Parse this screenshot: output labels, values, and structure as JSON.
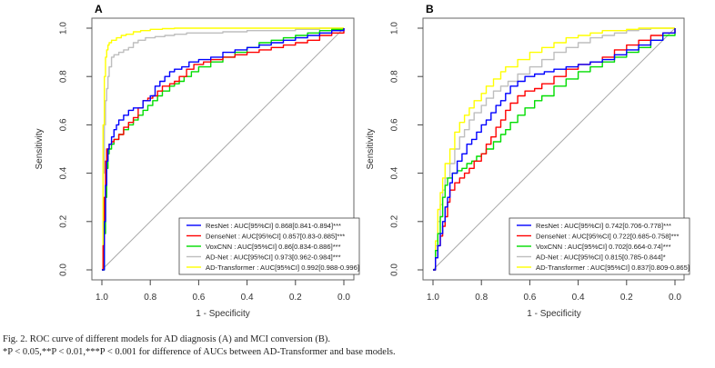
{
  "chart_data": [
    {
      "type": "line",
      "panel_label": "A",
      "title": "",
      "xlabel": "1 - Specificity",
      "ylabel": "Sensitivity",
      "xlim": [
        1.0,
        0.0
      ],
      "ylim": [
        0.0,
        1.0
      ],
      "x_reversed": true,
      "xticks": [
        "1.0",
        "0.8",
        "0.6",
        "0.4",
        "0.2",
        "0.0"
      ],
      "yticks": [
        "0.0",
        "0.2",
        "0.4",
        "0.6",
        "0.8",
        "1.0"
      ],
      "grid": false,
      "diagonal_reference": true,
      "legend_position": "bottom-right",
      "x_axis_values_are": "specificity",
      "series": [
        {
          "name": "ResNet",
          "label": "ResNet : AUC[95%CI]  0.868[0.841-0.894]***",
          "color": "#0000ff",
          "x": [
            1.0,
            0.99,
            0.985,
            0.98,
            0.975,
            0.97,
            0.96,
            0.95,
            0.94,
            0.93,
            0.91,
            0.89,
            0.87,
            0.85,
            0.83,
            0.8,
            0.78,
            0.76,
            0.74,
            0.72,
            0.7,
            0.67,
            0.64,
            0.6,
            0.55,
            0.5,
            0.45,
            0.4,
            0.35,
            0.3,
            0.25,
            0.2,
            0.15,
            0.1,
            0.05,
            0.0
          ],
          "y": [
            0.0,
            0.2,
            0.35,
            0.45,
            0.5,
            0.52,
            0.55,
            0.58,
            0.6,
            0.62,
            0.64,
            0.66,
            0.67,
            0.67,
            0.7,
            0.72,
            0.76,
            0.78,
            0.8,
            0.82,
            0.83,
            0.84,
            0.86,
            0.87,
            0.88,
            0.9,
            0.91,
            0.92,
            0.93,
            0.94,
            0.95,
            0.96,
            0.97,
            0.98,
            0.99,
            1.0
          ]
        },
        {
          "name": "DenseNet",
          "label": "DenseNet : AUC[95%CI]  0.857[0.83-0.885]***",
          "color": "#ff0000",
          "x": [
            1.0,
            0.995,
            0.99,
            0.985,
            0.98,
            0.97,
            0.96,
            0.95,
            0.93,
            0.91,
            0.89,
            0.87,
            0.85,
            0.83,
            0.81,
            0.79,
            0.77,
            0.75,
            0.72,
            0.7,
            0.68,
            0.65,
            0.62,
            0.58,
            0.55,
            0.5,
            0.45,
            0.4,
            0.35,
            0.3,
            0.25,
            0.2,
            0.15,
            0.1,
            0.05,
            0.0
          ],
          "y": [
            0.0,
            0.1,
            0.3,
            0.45,
            0.5,
            0.52,
            0.53,
            0.54,
            0.56,
            0.59,
            0.61,
            0.63,
            0.67,
            0.7,
            0.71,
            0.72,
            0.74,
            0.76,
            0.77,
            0.78,
            0.8,
            0.83,
            0.85,
            0.86,
            0.87,
            0.88,
            0.89,
            0.9,
            0.91,
            0.92,
            0.93,
            0.94,
            0.95,
            0.97,
            0.98,
            1.0
          ]
        },
        {
          "name": "VoxCNN",
          "label": "VoxCNN : AUC[95%CI]  0.86[0.834-0.886]***",
          "color": "#00dd00",
          "x": [
            1.0,
            0.99,
            0.985,
            0.98,
            0.975,
            0.97,
            0.96,
            0.95,
            0.93,
            0.91,
            0.89,
            0.87,
            0.85,
            0.83,
            0.81,
            0.79,
            0.77,
            0.75,
            0.72,
            0.7,
            0.68,
            0.66,
            0.63,
            0.6,
            0.55,
            0.5,
            0.45,
            0.4,
            0.35,
            0.3,
            0.25,
            0.2,
            0.15,
            0.1,
            0.05,
            0.0
          ],
          "y": [
            0.0,
            0.15,
            0.3,
            0.42,
            0.48,
            0.5,
            0.52,
            0.54,
            0.56,
            0.58,
            0.6,
            0.62,
            0.64,
            0.66,
            0.68,
            0.7,
            0.72,
            0.74,
            0.76,
            0.77,
            0.78,
            0.8,
            0.82,
            0.84,
            0.86,
            0.88,
            0.9,
            0.92,
            0.94,
            0.95,
            0.96,
            0.97,
            0.98,
            0.99,
            0.995,
            1.0
          ]
        },
        {
          "name": "AD-Net",
          "label": "AD-Net : AUC[95%CI]  0.973[0.962-0.984]***",
          "color": "#bebebe",
          "x": [
            1.0,
            0.995,
            0.99,
            0.985,
            0.98,
            0.975,
            0.97,
            0.96,
            0.95,
            0.93,
            0.91,
            0.89,
            0.87,
            0.85,
            0.82,
            0.78,
            0.74,
            0.7,
            0.65,
            0.6,
            0.5,
            0.4,
            0.3,
            0.2,
            0.1,
            0.0
          ],
          "y": [
            0.0,
            0.4,
            0.6,
            0.7,
            0.75,
            0.8,
            0.84,
            0.88,
            0.89,
            0.9,
            0.91,
            0.92,
            0.94,
            0.95,
            0.96,
            0.965,
            0.97,
            0.975,
            0.98,
            0.98,
            0.985,
            0.99,
            0.99,
            0.995,
            1.0,
            1.0
          ]
        },
        {
          "name": "AD-Transformer",
          "label": "AD-Transformer : AUC[95%CI]  0.992[0.988-0.996]",
          "color": "#ffff00",
          "x": [
            1.0,
            0.995,
            0.99,
            0.985,
            0.98,
            0.975,
            0.97,
            0.96,
            0.94,
            0.92,
            0.9,
            0.87,
            0.84,
            0.8,
            0.75,
            0.7,
            0.6,
            0.5,
            0.4,
            0.3,
            0.2,
            0.1,
            0.0
          ],
          "y": [
            0.0,
            0.6,
            0.8,
            0.88,
            0.91,
            0.93,
            0.94,
            0.95,
            0.96,
            0.97,
            0.975,
            0.985,
            0.99,
            0.995,
            0.998,
            1.0,
            1.0,
            1.0,
            1.0,
            1.0,
            1.0,
            1.0,
            1.0
          ]
        }
      ]
    },
    {
      "type": "line",
      "panel_label": "B",
      "title": "",
      "xlabel": "1 - Specificity",
      "ylabel": "Sensitivity",
      "xlim": [
        1.0,
        0.0
      ],
      "ylim": [
        0.0,
        1.0
      ],
      "x_reversed": true,
      "xticks": [
        "1.0",
        "0.8",
        "0.6",
        "0.4",
        "0.2",
        "0.0"
      ],
      "yticks": [
        "0.0",
        "0.2",
        "0.4",
        "0.6",
        "0.8",
        "1.0"
      ],
      "grid": false,
      "diagonal_reference": true,
      "legend_position": "bottom-right",
      "x_axis_values_are": "specificity",
      "series": [
        {
          "name": "ResNet",
          "label": "ResNet : AUC[95%CI]  0.742[0.706-0.778]***",
          "color": "#0000ff",
          "x": [
            1.0,
            0.99,
            0.98,
            0.97,
            0.96,
            0.95,
            0.94,
            0.93,
            0.92,
            0.9,
            0.88,
            0.86,
            0.84,
            0.82,
            0.8,
            0.78,
            0.76,
            0.74,
            0.72,
            0.7,
            0.68,
            0.65,
            0.62,
            0.58,
            0.54,
            0.5,
            0.45,
            0.4,
            0.35,
            0.3,
            0.25,
            0.2,
            0.15,
            0.1,
            0.05,
            0.0
          ],
          "y": [
            0.0,
            0.05,
            0.1,
            0.15,
            0.2,
            0.26,
            0.3,
            0.36,
            0.4,
            0.45,
            0.48,
            0.52,
            0.54,
            0.57,
            0.6,
            0.62,
            0.65,
            0.68,
            0.7,
            0.73,
            0.76,
            0.78,
            0.8,
            0.81,
            0.82,
            0.83,
            0.84,
            0.85,
            0.86,
            0.87,
            0.89,
            0.91,
            0.93,
            0.95,
            0.98,
            1.0
          ]
        },
        {
          "name": "DenseNet",
          "label": "DenseNet : AUC[95%CI]  0.722[0.685-0.758]***",
          "color": "#ff0000",
          "x": [
            1.0,
            0.99,
            0.98,
            0.97,
            0.96,
            0.95,
            0.94,
            0.93,
            0.91,
            0.89,
            0.87,
            0.85,
            0.83,
            0.8,
            0.78,
            0.76,
            0.74,
            0.72,
            0.7,
            0.68,
            0.65,
            0.62,
            0.58,
            0.55,
            0.5,
            0.45,
            0.4,
            0.35,
            0.3,
            0.25,
            0.2,
            0.15,
            0.1,
            0.05,
            0.0
          ],
          "y": [
            0.0,
            0.05,
            0.1,
            0.14,
            0.18,
            0.22,
            0.28,
            0.33,
            0.36,
            0.38,
            0.4,
            0.42,
            0.45,
            0.48,
            0.52,
            0.55,
            0.59,
            0.62,
            0.66,
            0.69,
            0.72,
            0.74,
            0.75,
            0.77,
            0.8,
            0.83,
            0.85,
            0.86,
            0.88,
            0.91,
            0.93,
            0.95,
            0.97,
            0.98,
            1.0
          ]
        },
        {
          "name": "VoxCNN",
          "label": "VoxCNN : AUC[95%CI]  0.702[0.664-0.74]***",
          "color": "#00dd00",
          "x": [
            1.0,
            0.99,
            0.98,
            0.97,
            0.96,
            0.95,
            0.94,
            0.92,
            0.9,
            0.88,
            0.86,
            0.84,
            0.82,
            0.8,
            0.78,
            0.75,
            0.72,
            0.7,
            0.68,
            0.65,
            0.62,
            0.58,
            0.55,
            0.5,
            0.45,
            0.4,
            0.35,
            0.3,
            0.25,
            0.2,
            0.15,
            0.1,
            0.05,
            0.0
          ],
          "y": [
            0.0,
            0.08,
            0.15,
            0.22,
            0.3,
            0.35,
            0.38,
            0.4,
            0.41,
            0.42,
            0.44,
            0.45,
            0.47,
            0.48,
            0.5,
            0.53,
            0.56,
            0.58,
            0.61,
            0.64,
            0.67,
            0.7,
            0.72,
            0.76,
            0.79,
            0.82,
            0.84,
            0.86,
            0.88,
            0.9,
            0.92,
            0.95,
            0.97,
            1.0
          ]
        },
        {
          "name": "AD-Net",
          "label": "AD-Net : AUC[95%CI]  0.815[0.785-0.844]*",
          "color": "#bebebe",
          "x": [
            1.0,
            0.99,
            0.98,
            0.97,
            0.96,
            0.95,
            0.93,
            0.91,
            0.89,
            0.87,
            0.85,
            0.83,
            0.8,
            0.78,
            0.75,
            0.72,
            0.69,
            0.65,
            0.6,
            0.55,
            0.5,
            0.45,
            0.4,
            0.35,
            0.3,
            0.25,
            0.2,
            0.15,
            0.1,
            0.05,
            0.0
          ],
          "y": [
            0.0,
            0.1,
            0.2,
            0.27,
            0.33,
            0.38,
            0.44,
            0.5,
            0.55,
            0.58,
            0.62,
            0.65,
            0.68,
            0.71,
            0.74,
            0.76,
            0.78,
            0.81,
            0.84,
            0.87,
            0.9,
            0.92,
            0.94,
            0.96,
            0.97,
            0.98,
            0.99,
            0.995,
            1.0,
            1.0,
            1.0
          ]
        },
        {
          "name": "AD-Transformer",
          "label": "AD-Transformer : AUC[95%CI]  0.837[0.809-0.865]",
          "color": "#ffff00",
          "x": [
            1.0,
            0.99,
            0.98,
            0.97,
            0.96,
            0.95,
            0.93,
            0.91,
            0.89,
            0.87,
            0.85,
            0.83,
            0.8,
            0.78,
            0.75,
            0.72,
            0.7,
            0.65,
            0.6,
            0.55,
            0.5,
            0.45,
            0.4,
            0.35,
            0.3,
            0.25,
            0.2,
            0.15,
            0.1,
            0.05,
            0.0
          ],
          "y": [
            0.0,
            0.12,
            0.25,
            0.32,
            0.38,
            0.44,
            0.5,
            0.57,
            0.61,
            0.64,
            0.67,
            0.7,
            0.73,
            0.76,
            0.79,
            0.82,
            0.84,
            0.87,
            0.9,
            0.92,
            0.94,
            0.96,
            0.97,
            0.98,
            0.99,
            0.99,
            0.995,
            1.0,
            1.0,
            1.0,
            1.0
          ]
        }
      ]
    }
  ],
  "caption": {
    "line1": "Fig. 2.  ROC curve of different models for AD diagnosis (A) and MCI conversion (B).",
    "line2": "*P < 0.05,**P < 0.01,***P < 0.001 for difference of AUCs between AD-Transformer and base models."
  }
}
